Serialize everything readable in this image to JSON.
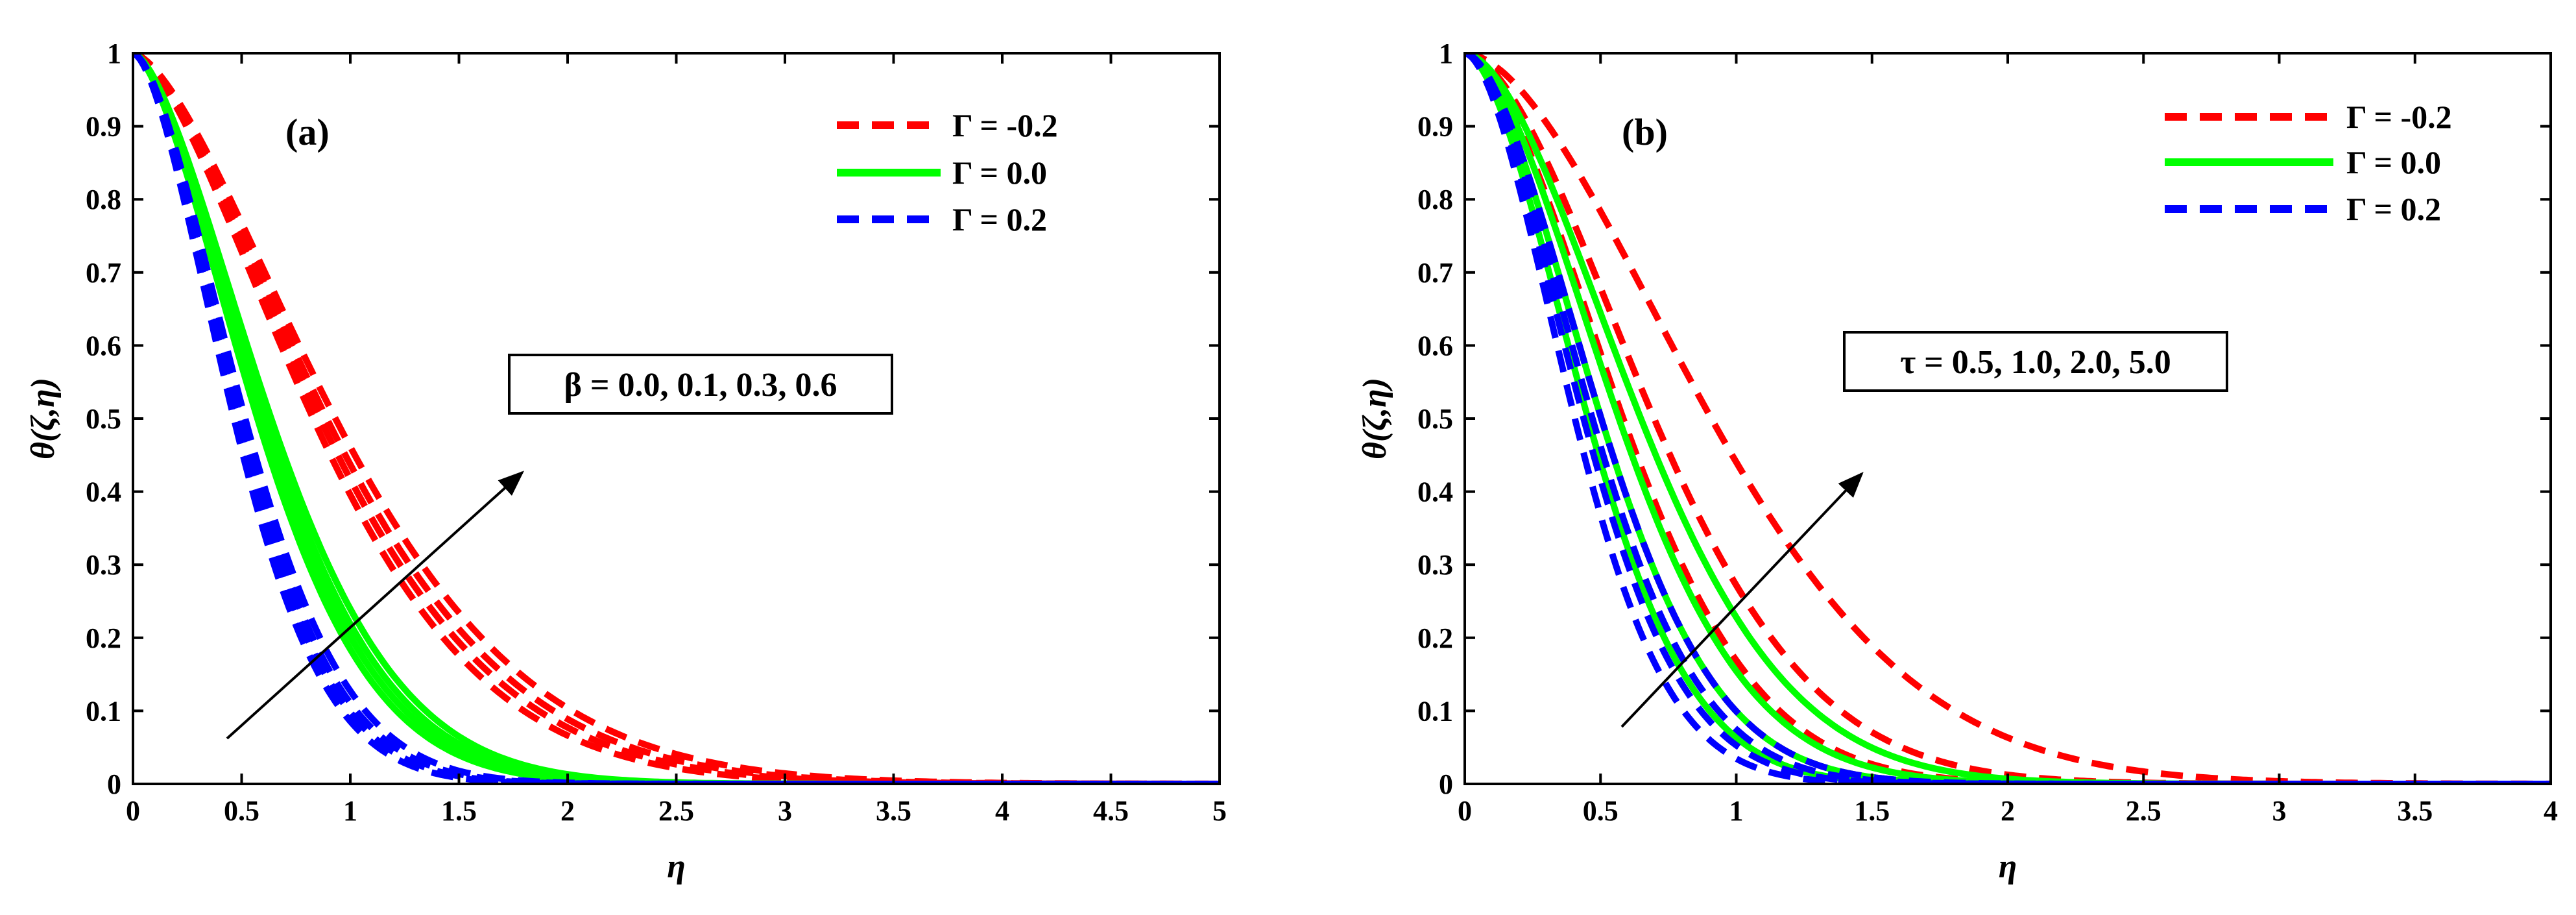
{
  "chart_data": [
    {
      "type": "line",
      "panel_label": "(a)",
      "xlabel": "η",
      "ylabel": "θ(ζ,η)",
      "xlim": [
        0,
        5
      ],
      "ylim": [
        0,
        1
      ],
      "xticks": [
        "0",
        "0.5",
        "1",
        "1.5",
        "2",
        "2.5",
        "3",
        "3.5",
        "4",
        "4.5",
        "5"
      ],
      "yticks": [
        "0",
        "0.1",
        "0.2",
        "0.3",
        "0.4",
        "0.5",
        "0.6",
        "0.7",
        "0.8",
        "0.9",
        "1"
      ],
      "legend": [
        "Γ = -0.2",
        "Γ = 0.0",
        "Γ = 0.2"
      ],
      "legend_position": "top-right",
      "annotation": "β = 0.0, 0.1, 0.3, 0.6",
      "parameter_values": [
        0.0,
        0.1,
        0.3,
        0.6
      ],
      "curve_model": "theta = exp(-(eta/w)^p)",
      "series": [
        {
          "name": "Γ = -0.2",
          "color": "#ff0000",
          "style": "dashed",
          "p": 1.55,
          "widths": [
            1.05,
            1.09,
            1.13,
            1.18
          ]
        },
        {
          "name": "Γ = 0.0",
          "color": "#00ff00",
          "style": "solid",
          "p": 1.6,
          "widths": [
            0.72,
            0.745,
            0.77,
            0.8
          ]
        },
        {
          "name": "Γ = 0.2",
          "color": "#0000ff",
          "style": "dashed",
          "p": 1.65,
          "widths": [
            0.58,
            0.6,
            0.62,
            0.645
          ]
        }
      ]
    },
    {
      "type": "line",
      "panel_label": "(b)",
      "xlabel": "η",
      "ylabel": "θ(ζ,η)",
      "xlim": [
        0,
        4
      ],
      "ylim": [
        0,
        1
      ],
      "xticks": [
        "0",
        "0.5",
        "1",
        "1.5",
        "2",
        "2.5",
        "3",
        "3.5",
        "4"
      ],
      "yticks": [
        "0",
        "0.1",
        "0.2",
        "0.3",
        "0.4",
        "0.5",
        "0.6",
        "0.7",
        "0.8",
        "0.9",
        "1"
      ],
      "legend": [
        "Γ = -0.2",
        "Γ = 0.0",
        "Γ = 0.2"
      ],
      "legend_position": "top-right",
      "annotation": "τ = 0.5, 1.0, 2.0, 5.0",
      "parameter_values": [
        0.5,
        1.0,
        2.0,
        5.0
      ],
      "curve_model": "theta = exp(-(eta/w)^p)",
      "series": [
        {
          "name": "Γ = -0.2",
          "color": "#ff0000",
          "style": "dashed",
          "p": 1.75,
          "widths": [
            0.62,
            0.72,
            0.86,
            1.12
          ]
        },
        {
          "name": "Γ = 0.0",
          "color": "#00ff00",
          "style": "solid",
          "p": 1.75,
          "widths": [
            0.56,
            0.62,
            0.7,
            0.8
          ]
        },
        {
          "name": "Γ = 0.2",
          "color": "#0000ff",
          "style": "dashed",
          "p": 1.75,
          "widths": [
            0.5,
            0.54,
            0.58,
            0.62
          ]
        }
      ]
    }
  ]
}
